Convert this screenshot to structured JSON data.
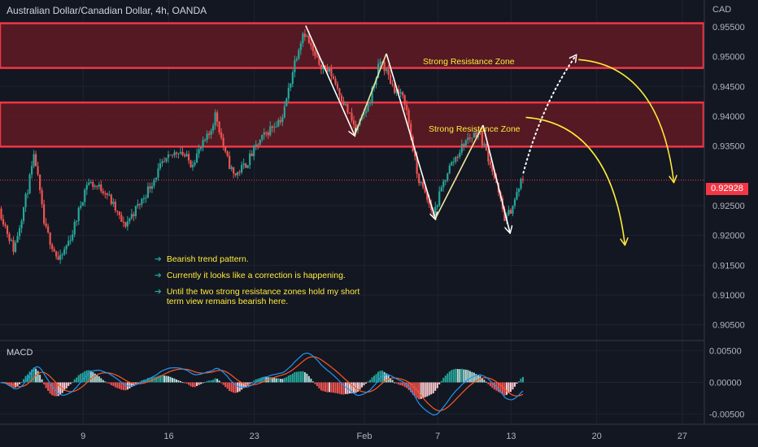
{
  "header": {
    "title": "Australian Dollar/Canadian Dollar, 4h, OANDA",
    "currency": "CAD"
  },
  "zones": [
    {
      "label": "Strong Resistance Zone",
      "from": 0.9481,
      "to": 0.9556
    },
    {
      "label": "Strong Resistance Zone",
      "from": 0.9349,
      "to": 0.9423
    }
  ],
  "notes": [
    "Bearish trend pattern.",
    "Currently it looks like a correction is happening.",
    "Until the two strong resistance zones hold my short term view remains bearish here."
  ],
  "colors": {
    "background": "#131722",
    "bull": "#26a69a",
    "bear": "#ef5350",
    "zone_border": "#f23645",
    "zone_fill": "#5c1a24",
    "annotation": "#ffeb3b",
    "macd_line": "#2196f3",
    "signal_line": "#ff5722",
    "price_tag": "#f23645"
  },
  "chart_data": {
    "type": "candlestick",
    "price_axis": {
      "ticks": [
        "0.95500",
        "0.95000",
        "0.94500",
        "0.94000",
        "0.93500",
        "0.92500",
        "0.92000",
        "0.91500",
        "0.91000",
        "0.90500"
      ],
      "current_price": "0.92928",
      "ylim": [
        0.9025,
        0.9595
      ]
    },
    "x_axis": {
      "ticks": [
        {
          "label": "9",
          "day": 9
        },
        {
          "label": "16",
          "day": 16
        },
        {
          "label": "23",
          "day": 23
        },
        {
          "label": "Feb",
          "day": 32
        },
        {
          "label": "7",
          "day": 38
        },
        {
          "label": "13",
          "day": 44
        },
        {
          "label": "20",
          "day": 51
        },
        {
          "label": "27",
          "day": 58
        }
      ],
      "xlim": [
        2.2,
        59.8
      ]
    },
    "price_waypoints": [
      {
        "day": 2.3,
        "price": 0.9245
      },
      {
        "day": 3.5,
        "price": 0.9175
      },
      {
        "day": 4.5,
        "price": 0.9265
      },
      {
        "day": 5.2,
        "price": 0.9335
      },
      {
        "day": 6.0,
        "price": 0.9215
      },
      {
        "day": 7.2,
        "price": 0.9155
      },
      {
        "day": 8.3,
        "price": 0.9205
      },
      {
        "day": 9.5,
        "price": 0.929
      },
      {
        "day": 11.0,
        "price": 0.9275
      },
      {
        "day": 12.5,
        "price": 0.9215
      },
      {
        "day": 14.0,
        "price": 0.926
      },
      {
        "day": 15.5,
        "price": 0.9315
      },
      {
        "day": 17.0,
        "price": 0.9345
      },
      {
        "day": 18.0,
        "price": 0.932
      },
      {
        "day": 19.5,
        "price": 0.937
      },
      {
        "day": 20.0,
        "price": 0.9405
      },
      {
        "day": 20.8,
        "price": 0.9335
      },
      {
        "day": 21.5,
        "price": 0.93
      },
      {
        "day": 22.5,
        "price": 0.932
      },
      {
        "day": 23.5,
        "price": 0.9355
      },
      {
        "day": 24.5,
        "price": 0.938
      },
      {
        "day": 25.5,
        "price": 0.94
      },
      {
        "day": 26.5,
        "price": 0.9495
      },
      {
        "day": 27.2,
        "price": 0.9545
      },
      {
        "day": 28.2,
        "price": 0.9495
      },
      {
        "day": 29.5,
        "price": 0.947
      },
      {
        "day": 31.5,
        "price": 0.9375
      },
      {
        "day": 32.5,
        "price": 0.942
      },
      {
        "day": 33.5,
        "price": 0.9495
      },
      {
        "day": 34.5,
        "price": 0.945
      },
      {
        "day": 35.5,
        "price": 0.9425
      },
      {
        "day": 36.5,
        "price": 0.93
      },
      {
        "day": 37.8,
        "price": 0.9235
      },
      {
        "day": 39.0,
        "price": 0.931
      },
      {
        "day": 40.5,
        "price": 0.936
      },
      {
        "day": 41.5,
        "price": 0.9375
      },
      {
        "day": 42.5,
        "price": 0.932
      },
      {
        "day": 43.7,
        "price": 0.9225
      },
      {
        "day": 44.4,
        "price": 0.9255
      },
      {
        "day": 45.0,
        "price": 0.9292
      }
    ],
    "pattern_path": [
      {
        "day": 27.2,
        "price": 0.9552
      },
      {
        "day": 31.2,
        "price": 0.9368
      },
      {
        "day": 33.8,
        "price": 0.9505
      },
      {
        "day": 37.8,
        "price": 0.9228
      },
      {
        "day": 41.7,
        "price": 0.9385
      },
      {
        "day": 43.9,
        "price": 0.9205
      }
    ],
    "projection_dotted": [
      {
        "day": 45.0,
        "price": 0.9305
      },
      {
        "day": 46.5,
        "price": 0.942
      },
      {
        "day": 49.3,
        "price": 0.9502
      }
    ],
    "projection_arrows": [
      {
        "from": {
          "day": 45.2,
          "price": 0.9398
        },
        "to": {
          "day": 53.3,
          "price": 0.9185
        }
      },
      {
        "from": {
          "day": 49.5,
          "price": 0.9495
        },
        "to": {
          "day": 57.3,
          "price": 0.929
        }
      }
    ],
    "macd": {
      "label": "MACD",
      "ticks": [
        "0.00500",
        "0.00000",
        "-0.00500"
      ],
      "ylim": [
        -0.0065,
        0.0065
      ]
    }
  }
}
